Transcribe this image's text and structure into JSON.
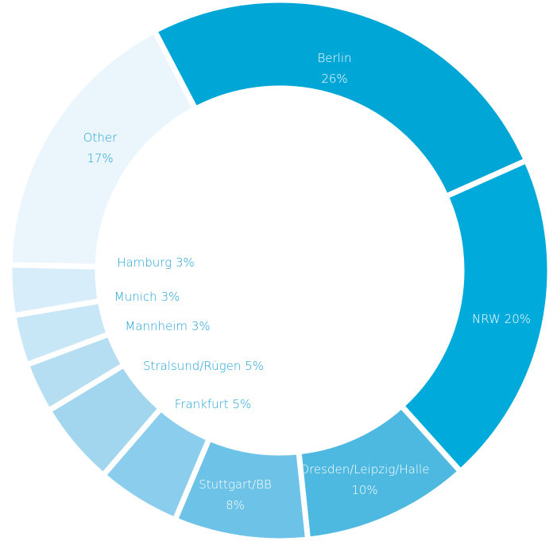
{
  "chart_data": {
    "type": "pie",
    "categories": [
      "Berlin",
      "NRW",
      "Dresden/Leipzig/Halle",
      "Stuttgart/BB",
      "Frankfurt",
      "Stralsund/Rügen",
      "Mannheim",
      "Munich",
      "Hamburg",
      "Other"
    ],
    "values": [
      26,
      20,
      10,
      8,
      5,
      5,
      3,
      3,
      3,
      17
    ],
    "value_labels": [
      "26%",
      "20%",
      "10%",
      "8%",
      "5%",
      "5%",
      "3%",
      "3%",
      "3%",
      "17%"
    ],
    "colors": [
      "#00a6d6",
      "#00aadb",
      "#4db9e1",
      "#6cc3e7",
      "#8bcdec",
      "#a2d6ef",
      "#b5def3",
      "#c7e6f6",
      "#d7edf9",
      "#ebf6fc"
    ]
  }
}
